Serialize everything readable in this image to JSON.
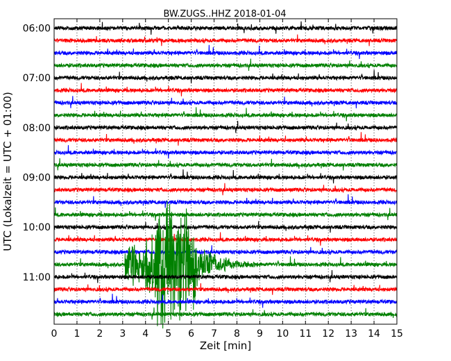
{
  "chart_data": {
    "type": "line",
    "title": "BW.ZUGS..HHZ 2018-01-04",
    "xlabel": "Zeit  [min]",
    "ylabel": "UTC (Lokalzeit = UTC + 01:00)",
    "xlim": [
      0,
      15
    ],
    "x_ticks": [
      "0",
      "1",
      "2",
      "3",
      "4",
      "5",
      "6",
      "7",
      "8",
      "9",
      "10",
      "11",
      "12",
      "13",
      "14",
      "15"
    ],
    "y_tick_labels": [
      "06:00",
      "07:00",
      "08:00",
      "09:00",
      "10:00",
      "11:00"
    ],
    "grid": "vertical dotted lines at each minute",
    "line_interval_min": 15,
    "colors_cycle": [
      "#000000",
      "#ff0000",
      "#0000ff",
      "#008000"
    ],
    "traces": [
      {
        "start": "06:00",
        "color": "#000000"
      },
      {
        "start": "06:15",
        "color": "#ff0000"
      },
      {
        "start": "06:30",
        "color": "#0000ff"
      },
      {
        "start": "06:45",
        "color": "#008000"
      },
      {
        "start": "07:00",
        "color": "#000000"
      },
      {
        "start": "07:15",
        "color": "#ff0000"
      },
      {
        "start": "07:30",
        "color": "#0000ff"
      },
      {
        "start": "07:45",
        "color": "#008000"
      },
      {
        "start": "08:00",
        "color": "#000000"
      },
      {
        "start": "08:15",
        "color": "#ff0000"
      },
      {
        "start": "08:30",
        "color": "#0000ff"
      },
      {
        "start": "08:45",
        "color": "#008000"
      },
      {
        "start": "09:00",
        "color": "#000000"
      },
      {
        "start": "09:15",
        "color": "#ff0000"
      },
      {
        "start": "09:30",
        "color": "#0000ff"
      },
      {
        "start": "09:45",
        "color": "#008000"
      },
      {
        "start": "10:00",
        "color": "#000000"
      },
      {
        "start": "10:15",
        "color": "#ff0000"
      },
      {
        "start": "10:30",
        "color": "#0000ff"
      },
      {
        "start": "10:45",
        "color": "#008000",
        "event": {
          "onset_min": 3.1,
          "peak_min": 4.8,
          "end_min": 9.0
        }
      },
      {
        "start": "11:00",
        "color": "#000000"
      },
      {
        "start": "11:15",
        "color": "#ff0000"
      },
      {
        "start": "11:30",
        "color": "#0000ff"
      },
      {
        "start": "11:45",
        "color": "#008000"
      }
    ]
  }
}
